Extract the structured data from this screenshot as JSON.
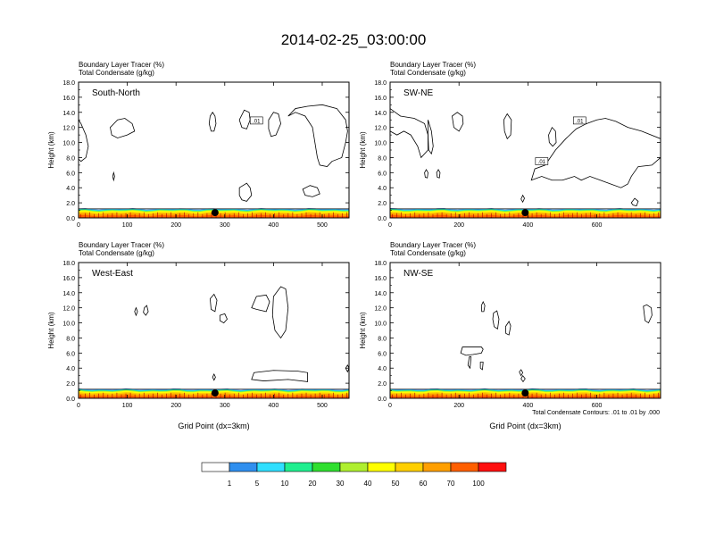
{
  "title": "2014-02-25_03:00:00",
  "colors": {
    "levels": [
      "#ffffff",
      "#2f8fef",
      "#2fdfff",
      "#1fef8f",
      "#2fdf2f",
      "#afef2f",
      "#ffff00",
      "#ffcf00",
      "#ff9f00",
      "#ff5f00",
      "#ff0f0f"
    ],
    "contour": "#000000",
    "marker": "#000000"
  },
  "colorbar": {
    "labels": [
      "1",
      "5",
      "10",
      "20",
      "30",
      "40",
      "50",
      "60",
      "70",
      "100"
    ]
  },
  "contour_note": "Total Condensate Contours: .01 to .01 by .000",
  "panel_subtitle_1": "Boundary Layer Tracer   (%)",
  "panel_subtitle_2": "Total Condensate   (g/kg)",
  "chart_data": [
    {
      "type": "heatmap",
      "name": "South-North",
      "title": "South-North",
      "ylabel": "Height (km)",
      "xlabel": "",
      "xlim": [
        0,
        555
      ],
      "ylim": [
        0,
        18
      ],
      "xticks": [
        "0",
        "100",
        "200",
        "300",
        "400",
        "500"
      ],
      "yticks": [
        "0.0",
        "2.0",
        "4.0",
        "6.0",
        "8.0",
        "10.0",
        "12.0",
        "14.0",
        "16.0",
        "18.0"
      ],
      "marker_x": 280,
      "contour_labels": [
        ".01"
      ],
      "boundary_layer_top_km": 1.2
    },
    {
      "type": "heatmap",
      "name": "SW-NE",
      "title": "SW-NE",
      "ylabel": "Height (km)",
      "xlabel": "",
      "xlim": [
        0,
        785
      ],
      "ylim": [
        0,
        18
      ],
      "xticks": [
        "0",
        "200",
        "400",
        "600"
      ],
      "yticks": [
        "0.0",
        "2.0",
        "4.0",
        "6.0",
        "8.0",
        "10.0",
        "12.0",
        "14.0",
        "16.0",
        "18.0"
      ],
      "marker_x": 392,
      "contour_labels": [
        ".01",
        ".01"
      ],
      "boundary_layer_top_km": 1.2
    },
    {
      "type": "heatmap",
      "name": "West-East",
      "title": "West-East",
      "ylabel": "Height (km)",
      "xlabel": "Grid Point (dx=3km)",
      "xlim": [
        0,
        555
      ],
      "ylim": [
        0,
        18
      ],
      "xticks": [
        "0",
        "100",
        "200",
        "300",
        "400",
        "500"
      ],
      "yticks": [
        "0.0",
        "2.0",
        "4.0",
        "6.0",
        "8.0",
        "10.0",
        "12.0",
        "14.0",
        "16.0",
        "18.0"
      ],
      "marker_x": 280,
      "contour_labels": [],
      "boundary_layer_top_km": 1.2
    },
    {
      "type": "heatmap",
      "name": "NW-SE",
      "title": "NW-SE",
      "ylabel": "Height (km)",
      "xlabel": "Grid Point (dx=3km)",
      "xlim": [
        0,
        785
      ],
      "ylim": [
        0,
        18
      ],
      "xticks": [
        "0",
        "200",
        "400",
        "600"
      ],
      "yticks": [
        "0.0",
        "2.0",
        "4.0",
        "6.0",
        "8.0",
        "10.0",
        "12.0",
        "14.0",
        "16.0",
        "18.0"
      ],
      "marker_x": 392,
      "contour_labels": [],
      "boundary_layer_top_km": 1.2
    }
  ]
}
